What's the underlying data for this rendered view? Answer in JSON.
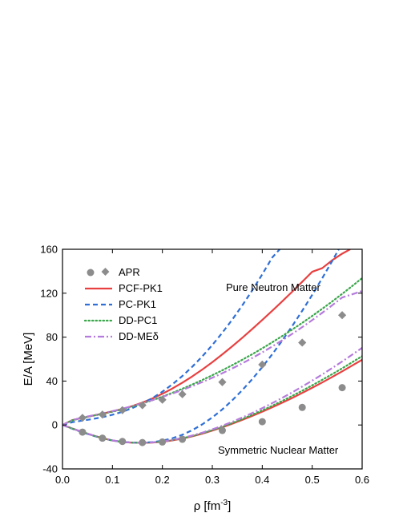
{
  "chart_data": {
    "type": "line",
    "xlabel": "ρ [fm",
    "xlabel_sup": "-3",
    "xlabel_suffix": "]",
    "ylabel": "E/A [MeV]",
    "xlim": [
      0.0,
      0.6
    ],
    "ylim": [
      -40,
      160
    ],
    "x_ticks": [
      0.0,
      0.1,
      0.2,
      0.3,
      0.4,
      0.5,
      0.6
    ],
    "x_tick_labels": [
      "0.0",
      "0.1",
      "0.2",
      "0.3",
      "0.4",
      "0.5",
      "0.6"
    ],
    "y_ticks": [
      -40,
      0,
      40,
      80,
      120,
      160
    ],
    "y_tick_labels": [
      "-40",
      "0",
      "40",
      "80",
      "120",
      "160"
    ],
    "grid": false,
    "legend_position": "top-left",
    "annotations": [
      "Pure Neutron Matter",
      "Symmetric Nuclear Matter"
    ],
    "apr": {
      "name": "APR",
      "color": "#8c8c8c",
      "neutron_matter": {
        "x": [
          0.04,
          0.08,
          0.12,
          0.16,
          0.2,
          0.24,
          0.32,
          0.4,
          0.48,
          0.56
        ],
        "y": [
          6.5,
          9.5,
          13.5,
          18.0,
          23.0,
          28.0,
          39.0,
          55.0,
          75.0,
          100.0
        ]
      },
      "nuclear_matter": {
        "x": [
          0.04,
          0.08,
          0.12,
          0.16,
          0.2,
          0.24,
          0.32,
          0.4,
          0.48,
          0.56
        ],
        "y": [
          -6.5,
          -12.0,
          -15.0,
          -16.0,
          -15.5,
          -13.0,
          -5.0,
          3.0,
          16.0,
          34.0
        ]
      }
    },
    "series": [
      {
        "name": "PCF-PK1",
        "color": "#e84040",
        "dash": "solid",
        "neutron_matter": {
          "x": [
            0.0,
            0.02,
            0.04,
            0.06,
            0.08,
            0.1,
            0.12,
            0.14,
            0.16,
            0.18,
            0.2,
            0.22,
            0.24,
            0.26,
            0.28,
            0.3,
            0.32,
            0.34,
            0.36,
            0.38,
            0.4,
            0.42,
            0.44,
            0.46,
            0.48,
            0.5,
            0.52,
            0.54,
            0.56,
            0.576
          ],
          "y": [
            0.0,
            4.5,
            6.5,
            8.4,
            10.3,
            12.4,
            14.6,
            17.3,
            20.4,
            24.1,
            28.4,
            33.2,
            38.5,
            44.3,
            50.5,
            57.2,
            64.3,
            71.7,
            79.4,
            87.4,
            95.6,
            104.0,
            112.6,
            121.4,
            130.4,
            139.5,
            142.8,
            150.0,
            156.0,
            160.0
          ]
        },
        "nuclear_matter": {
          "x": [
            0.0,
            0.02,
            0.04,
            0.06,
            0.08,
            0.1,
            0.12,
            0.14,
            0.16,
            0.18,
            0.2,
            0.22,
            0.24,
            0.26,
            0.28,
            0.3,
            0.32,
            0.34,
            0.36,
            0.38,
            0.4,
            0.42,
            0.44,
            0.46,
            0.48,
            0.5,
            0.52,
            0.54,
            0.56,
            0.58,
            0.6
          ],
          "y": [
            0.0,
            -3.3,
            -6.4,
            -9.4,
            -12.0,
            -14.1,
            -15.5,
            -16.1,
            -16.3,
            -16.0,
            -15.3,
            -14.0,
            -12.4,
            -10.3,
            -7.9,
            -5.1,
            -2.1,
            1.2,
            4.6,
            8.3,
            12.1,
            16.1,
            20.3,
            24.6,
            29.2,
            33.9,
            38.7,
            43.7,
            48.8,
            54.1,
            59.4
          ]
        }
      },
      {
        "name": "PC-PK1",
        "color": "#2f6fd6",
        "dash": "dashed",
        "neutron_matter": {
          "x": [
            0.0,
            0.02,
            0.04,
            0.06,
            0.08,
            0.1,
            0.12,
            0.14,
            0.16,
            0.18,
            0.2,
            0.22,
            0.24,
            0.26,
            0.28,
            0.3,
            0.32,
            0.34,
            0.36,
            0.38,
            0.4,
            0.42,
            0.435
          ],
          "y": [
            0.0,
            2.6,
            4.0,
            5.4,
            7.1,
            9.3,
            12.0,
            15.4,
            19.6,
            24.5,
            30.3,
            37.0,
            44.6,
            53.1,
            62.5,
            72.8,
            84.0,
            96.0,
            108.9,
            122.6,
            137.2,
            152.5,
            160.0
          ]
        },
        "nuclear_matter": {
          "x": [
            0.0,
            0.02,
            0.04,
            0.06,
            0.08,
            0.1,
            0.12,
            0.14,
            0.16,
            0.18,
            0.2,
            0.22,
            0.24,
            0.26,
            0.28,
            0.3,
            0.32,
            0.34,
            0.36,
            0.38,
            0.4,
            0.42,
            0.44,
            0.46,
            0.48,
            0.5,
            0.52,
            0.54,
            0.56,
            0.58,
            0.6
          ],
          "y": [
            0.0,
            -3.5,
            -6.7,
            -9.6,
            -12.1,
            -14.1,
            -15.4,
            -16.0,
            -16.1,
            -15.6,
            -14.3,
            -12.1,
            -8.9,
            -4.7,
            0.6,
            6.9,
            14.2,
            22.5,
            31.7,
            41.8,
            52.7,
            64.4,
            76.9,
            90.1,
            104.0,
            118.5,
            133.6,
            149.3,
            165.6,
            182.4,
            199.7
          ]
        }
      },
      {
        "name": "DD-PC1",
        "color": "#3aa64a",
        "dash": "dotted",
        "neutron_matter": {
          "x": [
            0.0,
            0.02,
            0.04,
            0.06,
            0.08,
            0.1,
            0.12,
            0.14,
            0.16,
            0.18,
            0.2,
            0.22,
            0.24,
            0.26,
            0.28,
            0.3,
            0.32,
            0.34,
            0.36,
            0.38,
            0.4,
            0.42,
            0.44,
            0.46,
            0.48,
            0.5,
            0.52,
            0.54,
            0.56,
            0.58,
            0.6
          ],
          "y": [
            0.0,
            4.3,
            6.5,
            8.3,
            10.2,
            12.1,
            14.3,
            16.8,
            19.5,
            22.5,
            25.8,
            29.3,
            33.0,
            36.9,
            41.0,
            45.3,
            49.8,
            54.5,
            59.4,
            64.5,
            69.8,
            75.3,
            81.0,
            86.9,
            93.0,
            99.3,
            105.8,
            112.5,
            119.4,
            126.5,
            133.8
          ]
        },
        "nuclear_matter": {
          "x": [
            0.0,
            0.02,
            0.04,
            0.06,
            0.08,
            0.1,
            0.12,
            0.14,
            0.16,
            0.18,
            0.2,
            0.22,
            0.24,
            0.26,
            0.28,
            0.3,
            0.32,
            0.34,
            0.36,
            0.38,
            0.4,
            0.42,
            0.44,
            0.46,
            0.48,
            0.5,
            0.52,
            0.54,
            0.56,
            0.58,
            0.6
          ],
          "y": [
            0.0,
            -3.3,
            -6.4,
            -9.4,
            -12.0,
            -14.1,
            -15.5,
            -16.1,
            -16.2,
            -15.9,
            -15.1,
            -13.8,
            -12.1,
            -10.0,
            -7.5,
            -4.7,
            -1.6,
            1.8,
            5.4,
            9.3,
            13.3,
            17.5,
            21.9,
            26.5,
            31.2,
            36.1,
            41.1,
            46.3,
            51.6,
            57.1,
            62.7
          ]
        }
      },
      {
        "name": "DD-MEδ",
        "color": "#b57bdc",
        "dash": "dashdot",
        "neutron_matter": {
          "x": [
            0.0,
            0.02,
            0.04,
            0.06,
            0.08,
            0.1,
            0.12,
            0.14,
            0.16,
            0.18,
            0.2,
            0.22,
            0.24,
            0.26,
            0.28,
            0.3,
            0.32,
            0.34,
            0.36,
            0.38,
            0.4,
            0.42,
            0.44,
            0.46,
            0.48,
            0.5,
            0.52,
            0.54,
            0.56,
            0.58,
            0.6
          ],
          "y": [
            0.0,
            4.5,
            6.8,
            8.7,
            10.6,
            12.6,
            14.8,
            17.2,
            19.8,
            22.6,
            25.5,
            28.6,
            31.9,
            35.4,
            39.1,
            43.0,
            47.1,
            51.5,
            56.1,
            61.0,
            66.1,
            71.5,
            77.1,
            83.0,
            89.1,
            95.5,
            102.1,
            109.0,
            116.1,
            119.0,
            122.0
          ]
        },
        "nuclear_matter": {
          "x": [
            0.0,
            0.02,
            0.04,
            0.06,
            0.08,
            0.1,
            0.12,
            0.14,
            0.16,
            0.18,
            0.2,
            0.22,
            0.24,
            0.26,
            0.28,
            0.3,
            0.32,
            0.34,
            0.36,
            0.38,
            0.4,
            0.42,
            0.44,
            0.46,
            0.48,
            0.5,
            0.52,
            0.54,
            0.56,
            0.58,
            0.6
          ],
          "y": [
            0.0,
            -3.3,
            -6.4,
            -9.3,
            -11.9,
            -14.0,
            -15.4,
            -16.1,
            -16.2,
            -15.8,
            -15.0,
            -13.6,
            -11.8,
            -9.6,
            -7.0,
            -4.0,
            -0.7,
            2.9,
            6.8,
            10.9,
            15.3,
            19.9,
            24.7,
            29.7,
            35.0,
            40.4,
            46.0,
            51.8,
            57.8,
            64.0,
            70.3
          ]
        }
      }
    ]
  }
}
